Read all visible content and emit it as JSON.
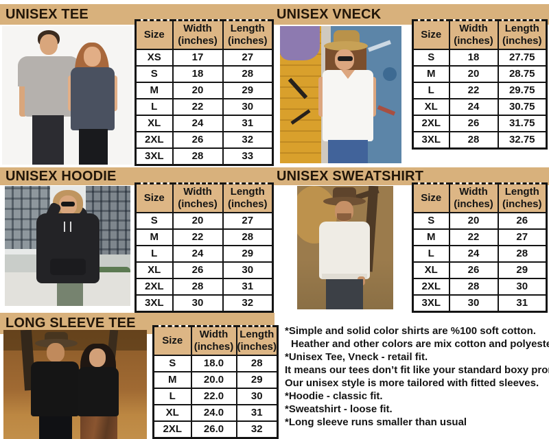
{
  "colors": {
    "band": "#d8b17c",
    "header_cell": "#ddb685",
    "border": "#141414",
    "text": "#141414",
    "title": "#221609",
    "page": "#ffffff"
  },
  "table_header": {
    "size": "Size",
    "width": "Width",
    "length": "Length",
    "unit": "(inches)"
  },
  "sections": [
    {
      "title": "UNISEX TEE",
      "rows": [
        [
          "XS",
          "17",
          "27"
        ],
        [
          "S",
          "18",
          "28"
        ],
        [
          "M",
          "20",
          "29"
        ],
        [
          "L",
          "22",
          "30"
        ],
        [
          "XL",
          "24",
          "31"
        ],
        [
          "2XL",
          "26",
          "32"
        ],
        [
          "3XL",
          "28",
          "33"
        ]
      ]
    },
    {
      "title": "UNISEX VNECK",
      "rows": [
        [
          "S",
          "18",
          "27.75"
        ],
        [
          "M",
          "20",
          "28.75"
        ],
        [
          "L",
          "22",
          "29.75"
        ],
        [
          "XL",
          "24",
          "30.75"
        ],
        [
          "2XL",
          "26",
          "31.75"
        ],
        [
          "3XL",
          "28",
          "32.75"
        ]
      ]
    },
    {
      "title": "UNISEX HOODIE",
      "rows": [
        [
          "S",
          "20",
          "27"
        ],
        [
          "M",
          "22",
          "28"
        ],
        [
          "L",
          "24",
          "29"
        ],
        [
          "XL",
          "26",
          "30"
        ],
        [
          "2XL",
          "28",
          "31"
        ],
        [
          "3XL",
          "30",
          "32"
        ]
      ]
    },
    {
      "title": "UNISEX SWEATSHIRT",
      "rows": [
        [
          "S",
          "20",
          "26"
        ],
        [
          "M",
          "22",
          "27"
        ],
        [
          "L",
          "24",
          "28"
        ],
        [
          "XL",
          "26",
          "29"
        ],
        [
          "2XL",
          "28",
          "30"
        ],
        [
          "3XL",
          "30",
          "31"
        ]
      ]
    },
    {
      "title": "LONG SLEEVE TEE",
      "rows": [
        [
          "S",
          "18.0",
          "28"
        ],
        [
          "M",
          "20.0",
          "29"
        ],
        [
          "L",
          "22.0",
          "30"
        ],
        [
          "XL",
          "24.0",
          "31"
        ],
        [
          "2XL",
          "26.0",
          "32"
        ]
      ]
    }
  ],
  "notes": {
    "lines": [
      "*Simple and solid color shirts are %100 soft cotton.",
      "Heather and other colors are mix cotton and polyester.",
      "*Unisex Tee, Vneck - retail fit.",
      "It means our tees don’t fit like your standard boxy promo tee.",
      "Our unisex style is more tailored with fitted sleeves.",
      "*Hoodie - classic fit.",
      "*Sweatshirt - loose fit.",
      "*Long sleeve runs smaller than usual"
    ]
  }
}
